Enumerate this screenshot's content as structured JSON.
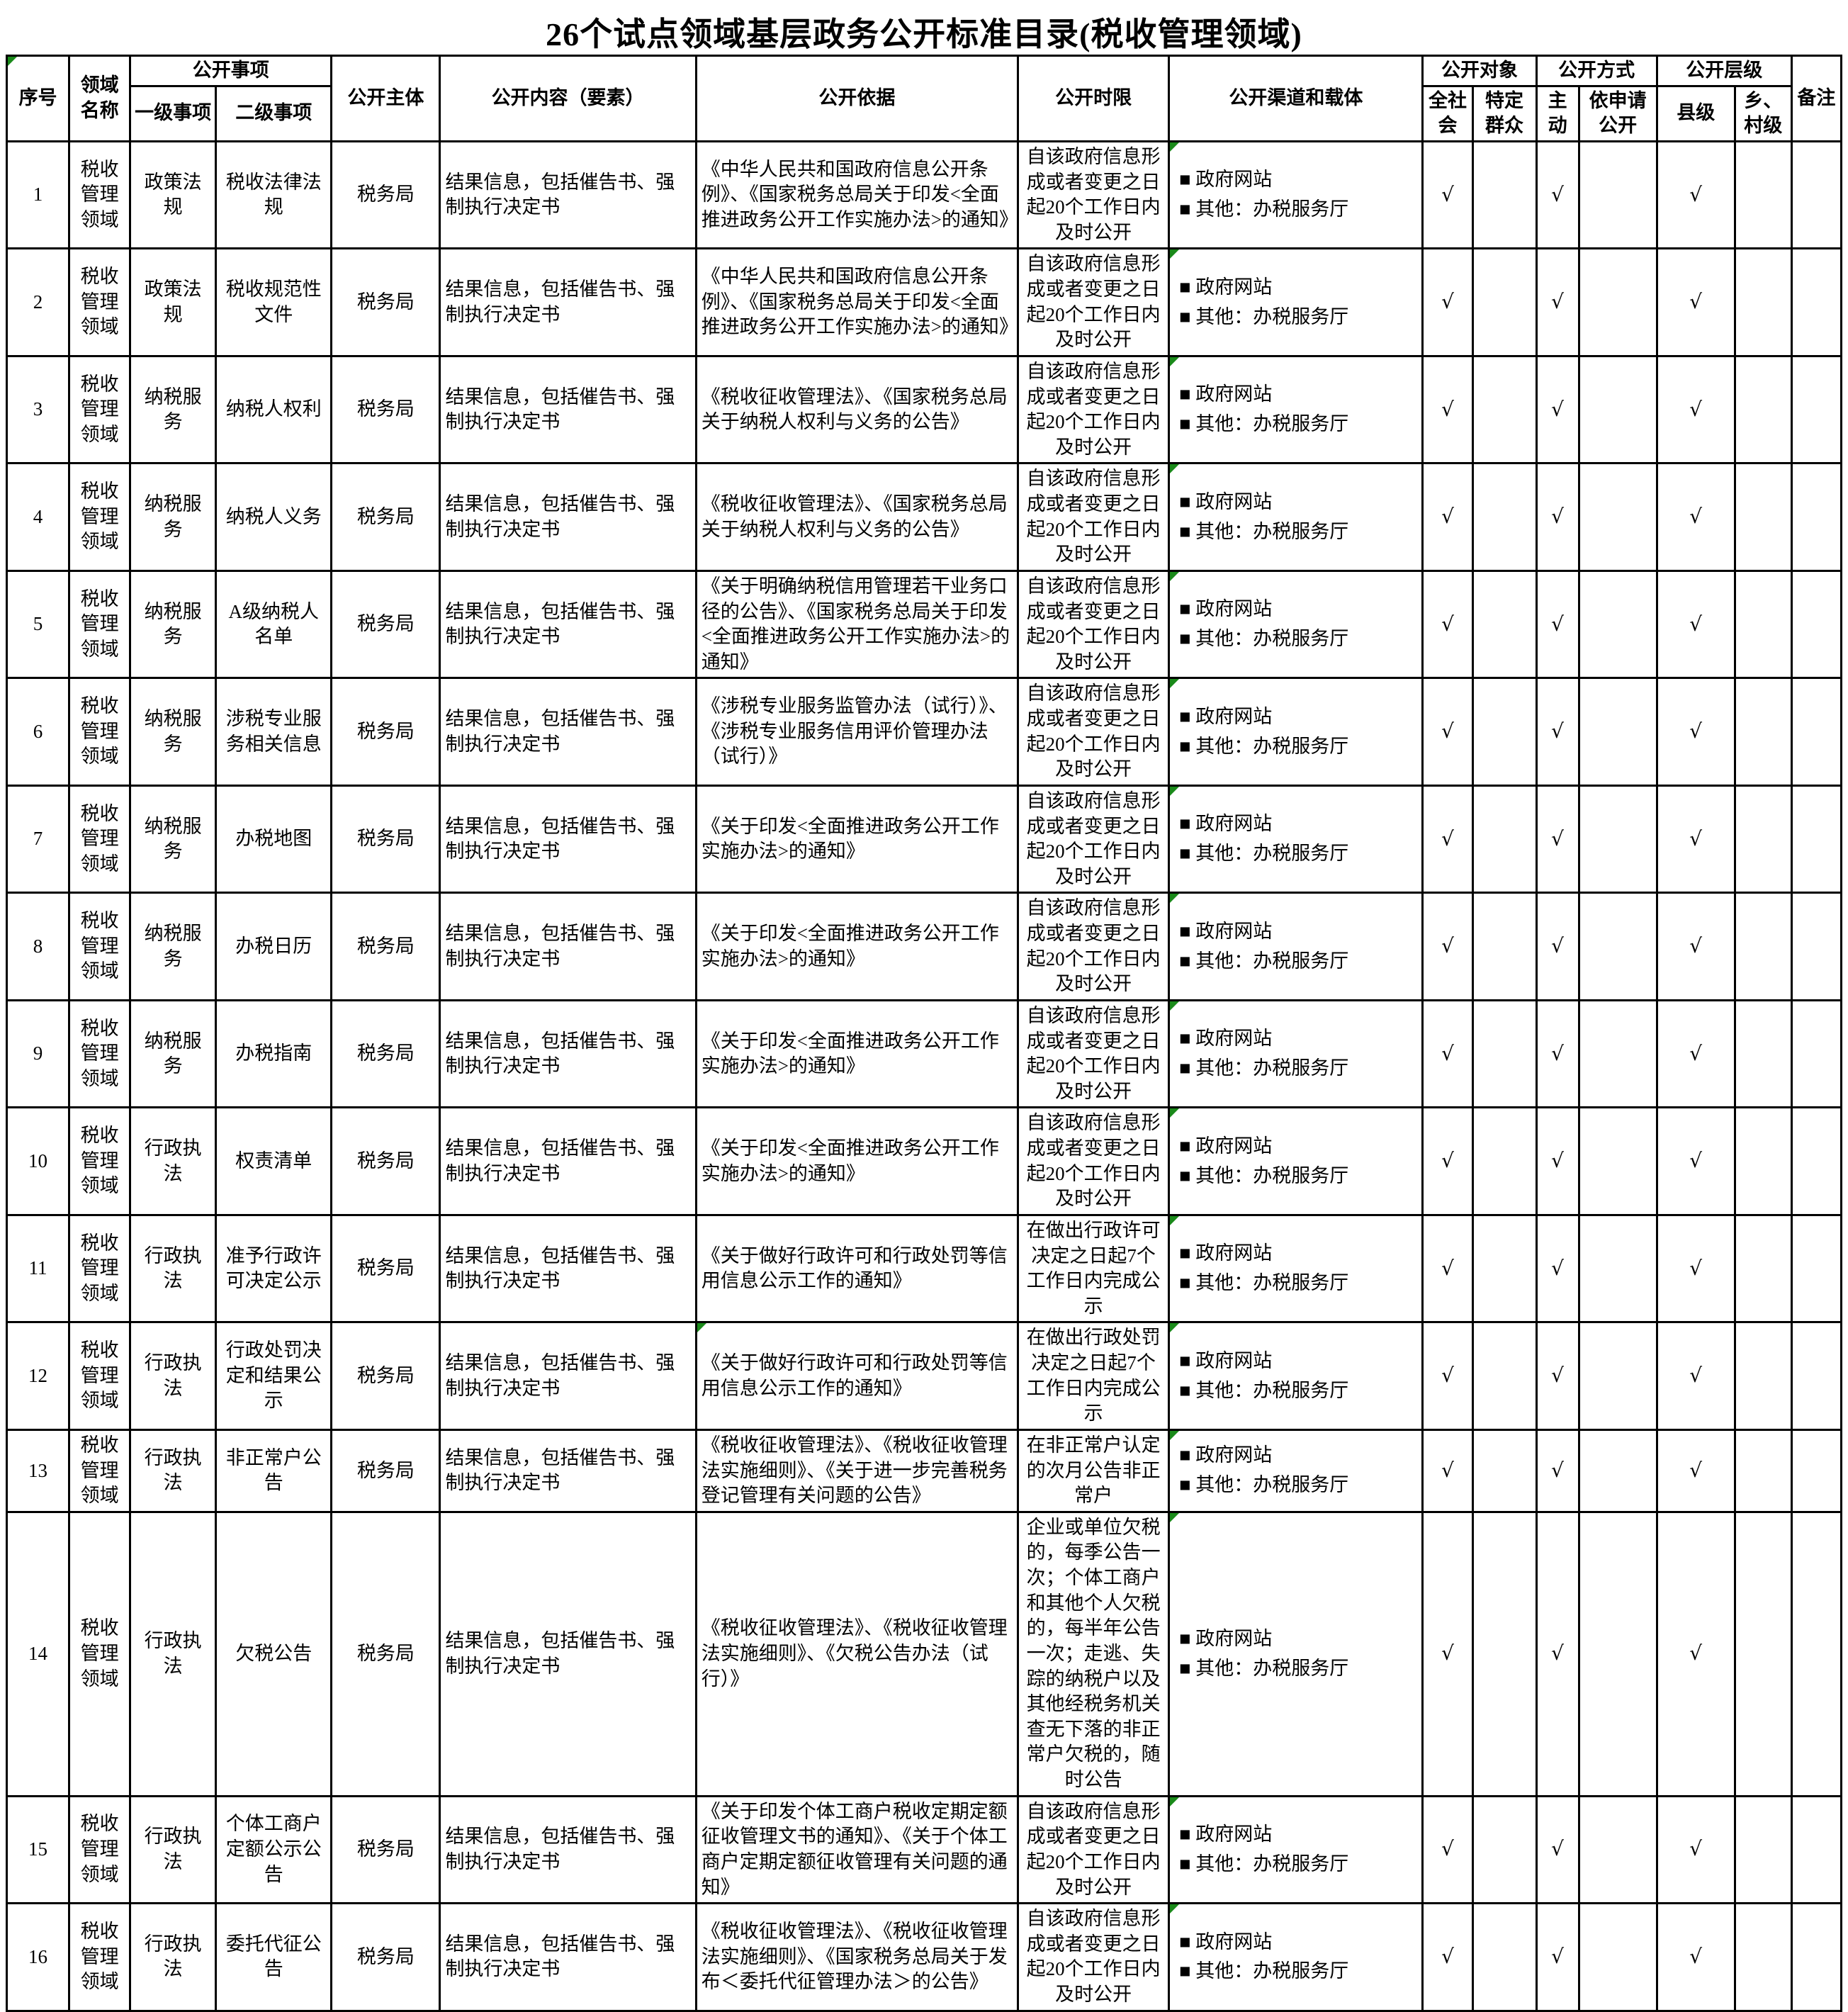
{
  "title": "26个试点领域基层政务公开标准目录(税收管理领域)",
  "accent_green": "#1a8a1a",
  "check_glyph": "√",
  "channel_bullet": "■",
  "header": {
    "col_no": "序号",
    "col_domain": "领域名称",
    "group_matters": "公开事项",
    "col_level1": "一级事项",
    "col_level2": "二级事项",
    "col_subject": "公开主体",
    "col_content": "公开内容（要素）",
    "col_basis": "公开依据",
    "col_time": "公开时限",
    "col_channel": "公开渠道和载体",
    "group_target": "公开对象",
    "col_society": "全社会",
    "col_specific": "特定群众",
    "group_method": "公开方式",
    "col_active": "主动",
    "col_request": "依申请公开",
    "group_level": "公开层级",
    "col_county": "县级",
    "col_township": "乡、村级",
    "col_remark": "备注"
  },
  "rows": [
    {
      "no": "1",
      "domain": "税收管理领域",
      "level1": "政策法规",
      "level2": "税收法律法规",
      "subject": "税务局",
      "content": "结果信息，包括催告书、强制执行决定书",
      "basis": "《中华人民共和国政府信息公开条例》、《国家税务总局关于印发<全面推进政务公开工作实施办法>的通知》",
      "time": "自该政府信息形成或者变更之日起20个工作日内及时公开",
      "channels": [
        "■  政府网站",
        "■  其他：办税服务厅"
      ],
      "checks": {
        "society": "√",
        "specific": "",
        "active": "√",
        "request": "",
        "county": "√",
        "township": ""
      },
      "remark": ""
    },
    {
      "no": "2",
      "domain": "税收管理领域",
      "level1": "政策法规",
      "level2": "税收规范性文件",
      "subject": "税务局",
      "content": "结果信息，包括催告书、强制执行决定书",
      "basis": "《中华人民共和国政府信息公开条例》、《国家税务总局关于印发<全面推进政务公开工作实施办法>的通知》",
      "time": "自该政府信息形成或者变更之日起20个工作日内及时公开",
      "channels": [
        "■  政府网站",
        "■  其他：办税服务厅"
      ],
      "checks": {
        "society": "√",
        "specific": "",
        "active": "√",
        "request": "",
        "county": "√",
        "township": ""
      },
      "remark": ""
    },
    {
      "no": "3",
      "domain": "税收管理领域",
      "level1": "纳税服务",
      "level2": "纳税人权利",
      "subject": "税务局",
      "content": "结果信息，包括催告书、强制执行决定书",
      "basis": "《税收征收管理法》、《国家税务总局关于纳税人权利与义务的公告》",
      "time": "自该政府信息形成或者变更之日起20个工作日内及时公开",
      "channels": [
        "■  政府网站",
        "■  其他：办税服务厅"
      ],
      "checks": {
        "society": "√",
        "specific": "",
        "active": "√",
        "request": "",
        "county": "√",
        "township": ""
      },
      "remark": ""
    },
    {
      "no": "4",
      "domain": "税收管理领域",
      "level1": "纳税服务",
      "level2": "纳税人义务",
      "subject": "税务局",
      "content": "结果信息，包括催告书、强制执行决定书",
      "basis": "《税收征收管理法》、《国家税务总局关于纳税人权利与义务的公告》",
      "time": "自该政府信息形成或者变更之日起20个工作日内及时公开",
      "channels": [
        "■  政府网站",
        "■  其他：办税服务厅"
      ],
      "checks": {
        "society": "√",
        "specific": "",
        "active": "√",
        "request": "",
        "county": "√",
        "township": ""
      },
      "remark": ""
    },
    {
      "no": "5",
      "domain": "税收管理领域",
      "level1": "纳税服务",
      "level2": "A级纳税人名单",
      "subject": "税务局",
      "content": "结果信息，包括催告书、强制执行决定书",
      "basis": "《关于明确纳税信用管理若干业务口径的公告》、《国家税务总局关于印发<全面推进政务公开工作实施办法>的通知》",
      "time": "自该政府信息形成或者变更之日起20个工作日内及时公开",
      "channels": [
        "■  政府网站",
        "■  其他：办税服务厅"
      ],
      "checks": {
        "society": "√",
        "specific": "",
        "active": "√",
        "request": "",
        "county": "√",
        "township": ""
      },
      "remark": ""
    },
    {
      "no": "6",
      "domain": "税收管理领域",
      "level1": "纳税服务",
      "level2": "涉税专业服务相关信息",
      "subject": "税务局",
      "content": "结果信息，包括催告书、强制执行决定书",
      "basis": "《涉税专业服务监管办法（试行）》、《涉税专业服务信用评价管理办法（试行）》",
      "time": "自该政府信息形成或者变更之日起20个工作日内及时公开",
      "channels": [
        "■  政府网站",
        "■  其他：办税服务厅"
      ],
      "checks": {
        "society": "√",
        "specific": "",
        "active": "√",
        "request": "",
        "county": "√",
        "township": ""
      },
      "remark": ""
    },
    {
      "no": "7",
      "domain": "税收管理领域",
      "level1": "纳税服务",
      "level2": "办税地图",
      "subject": "税务局",
      "content": "结果信息，包括催告书、强制执行决定书",
      "basis": "《关于印发<全面推进政务公开工作实施办法>的通知》",
      "time": "自该政府信息形成或者变更之日起20个工作日内及时公开",
      "channels": [
        "■  政府网站",
        "■  其他：办税服务厅"
      ],
      "checks": {
        "society": "√",
        "specific": "",
        "active": "√",
        "request": "",
        "county": "√",
        "township": ""
      },
      "remark": ""
    },
    {
      "no": "8",
      "domain": "税收管理领域",
      "level1": "纳税服务",
      "level2": "办税日历",
      "subject": "税务局",
      "content": "结果信息，包括催告书、强制执行决定书",
      "basis": "《关于印发<全面推进政务公开工作实施办法>的通知》",
      "time": "自该政府信息形成或者变更之日起20个工作日内及时公开",
      "channels": [
        "■  政府网站",
        "■  其他：办税服务厅"
      ],
      "checks": {
        "society": "√",
        "specific": "",
        "active": "√",
        "request": "",
        "county": "√",
        "township": ""
      },
      "remark": ""
    },
    {
      "no": "9",
      "domain": "税收管理领域",
      "level1": "纳税服务",
      "level2": "办税指南",
      "subject": "税务局",
      "content": "结果信息，包括催告书、强制执行决定书",
      "basis": "《关于印发<全面推进政务公开工作实施办法>的通知》",
      "time": "自该政府信息形成或者变更之日起20个工作日内及时公开",
      "channels": [
        "■  政府网站",
        "■  其他：办税服务厅"
      ],
      "checks": {
        "society": "√",
        "specific": "",
        "active": "√",
        "request": "",
        "county": "√",
        "township": ""
      },
      "remark": ""
    },
    {
      "no": "10",
      "domain": "税收管理领域",
      "level1": "行政执法",
      "level2": "权责清单",
      "subject": "税务局",
      "content": "结果信息，包括催告书、强制执行决定书",
      "basis": "《关于印发<全面推进政务公开工作实施办法>的通知》",
      "time": "自该政府信息形成或者变更之日起20个工作日内及时公开",
      "channels": [
        "■  政府网站",
        "■  其他：办税服务厅"
      ],
      "checks": {
        "society": "√",
        "specific": "",
        "active": "√",
        "request": "",
        "county": "√",
        "township": ""
      },
      "remark": ""
    },
    {
      "no": "11",
      "domain": "税收管理领域",
      "level1": "行政执法",
      "level2": "准予行政许可决定公示",
      "subject": "税务局",
      "content": "结果信息，包括催告书、强制执行决定书",
      "basis": "《关于做好行政许可和行政处罚等信用信息公示工作的通知》",
      "time": "在做出行政许可决定之日起7个工作日内完成公示",
      "channels": [
        "■  政府网站",
        "■  其他：办税服务厅"
      ],
      "checks": {
        "society": "√",
        "specific": "",
        "active": "√",
        "request": "",
        "county": "√",
        "township": ""
      },
      "remark": ""
    },
    {
      "no": "12",
      "domain": "税收管理领域",
      "level1": "行政执法",
      "level2": "行政处罚决定和结果公示",
      "subject": "税务局",
      "content": "结果信息，包括催告书、强制执行决定书",
      "basis": "《关于做好行政许可和行政处罚等信用信息公示工作的通知》",
      "basis_green_corner": true,
      "time": "在做出行政处罚决定之日起7个工作日内完成公示",
      "channels": [
        "■  政府网站",
        "■  其他：办税服务厅"
      ],
      "checks": {
        "society": "√",
        "specific": "",
        "active": "√",
        "request": "",
        "county": "√",
        "township": ""
      },
      "remark": ""
    },
    {
      "no": "13",
      "domain": "税收管理领域",
      "level1": "行政执法",
      "level2": "非正常户公告",
      "subject": "税务局",
      "content": "结果信息，包括催告书、强制执行决定书",
      "basis": "《税收征收管理法》、《税收征收管理法实施细则》、《关于进一步完善税务登记管理有关问题的公告》",
      "time": "在非正常户认定的次月公告非正常户",
      "channels": [
        "■  政府网站",
        "■  其他：办税服务厅"
      ],
      "checks": {
        "society": "√",
        "specific": "",
        "active": "√",
        "request": "",
        "county": "√",
        "township": ""
      },
      "remark": ""
    },
    {
      "no": "14",
      "domain": "税收管理领域",
      "level1": "行政执法",
      "level2": "欠税公告",
      "subject": "税务局",
      "content": "结果信息，包括催告书、强制执行决定书",
      "basis": "《税收征收管理法》、《税收征收管理法实施细则》、《欠税公告办法（试行）》",
      "time": "企业或单位欠税的，每季公告一次；个体工商户和其他个人欠税的，每半年公告一次；走逃、失踪的纳税户以及其他经税务机关查无下落的非正常户欠税的，随时公告",
      "channels": [
        "■  政府网站",
        "■  其他：办税服务厅"
      ],
      "checks": {
        "society": "√",
        "specific": "",
        "active": "√",
        "request": "",
        "county": "√",
        "township": ""
      },
      "remark": ""
    },
    {
      "no": "15",
      "domain": "税收管理领域",
      "level1": "行政执法",
      "level2": "个体工商户定额公示公告",
      "subject": "税务局",
      "content": "结果信息，包括催告书、强制执行决定书",
      "basis": "《关于印发个体工商户税收定期定额征收管理文书的通知》、《关于个体工商户定期定额征收管理有关问题的通知》",
      "time": "自该政府信息形成或者变更之日起20个工作日内及时公开",
      "channels": [
        "■  政府网站",
        "■  其他：办税服务厅"
      ],
      "checks": {
        "society": "√",
        "specific": "",
        "active": "√",
        "request": "",
        "county": "√",
        "township": ""
      },
      "remark": ""
    },
    {
      "no": "16",
      "domain": "税收管理领域",
      "level1": "行政执法",
      "level2": "委托代征公告",
      "subject": "税务局",
      "content": "结果信息，包括催告书、强制执行决定书",
      "basis": "《税收征收管理法》、《税收征收管理法实施细则》、《国家税务总局关于发布＜委托代征管理办法＞的公告》",
      "time": "自该政府信息形成或者变更之日起20个工作日内及时公开",
      "channels": [
        "■  政府网站",
        "■  其他：办税服务厅"
      ],
      "checks": {
        "society": "√",
        "specific": "",
        "active": "√",
        "request": "",
        "county": "√",
        "township": ""
      },
      "remark": ""
    }
  ]
}
